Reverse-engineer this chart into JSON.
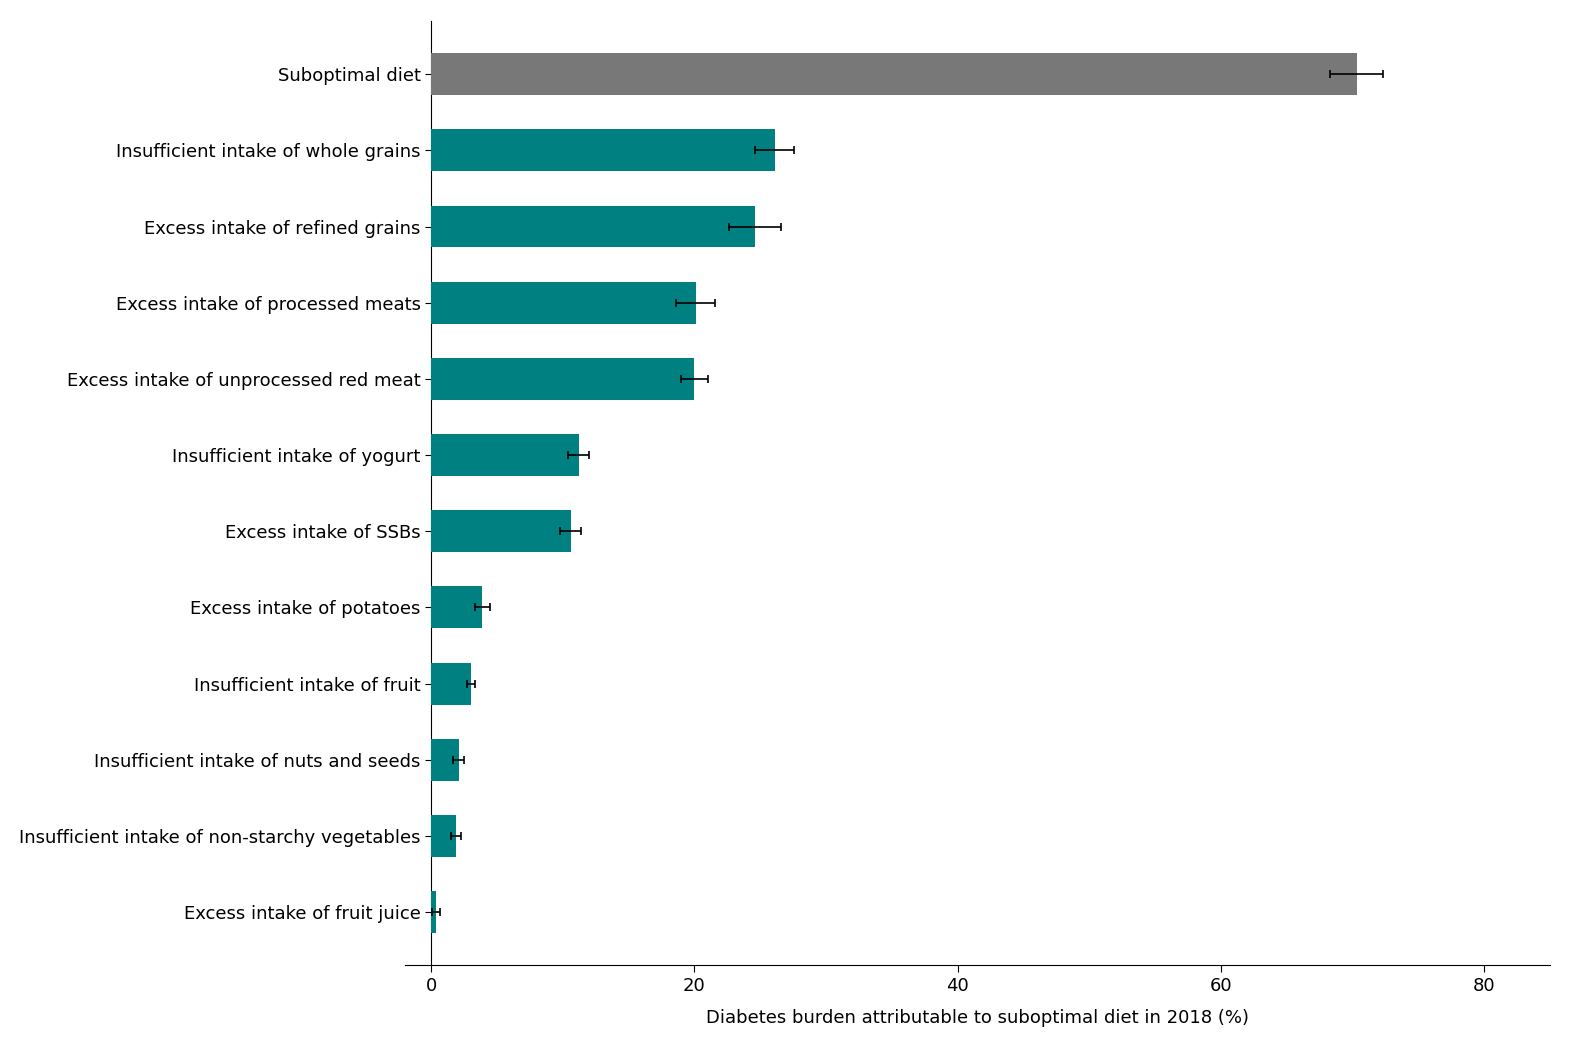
{
  "categories": [
    "Suboptimal diet",
    "Insufficient intake of whole grains",
    "Excess intake of refined grains",
    "Excess intake of processed meats",
    "Excess intake of unprocessed red meat",
    "Insufficient intake of yogurt",
    "Excess intake of SSBs",
    "Excess intake of potatoes",
    "Insufficient intake of fruit",
    "Insufficient intake of nuts and seeds",
    "Insufficient intake of non-starchy vegetables",
    "Excess intake of fruit juice"
  ],
  "values": [
    70.3,
    26.1,
    24.6,
    20.1,
    20.0,
    11.2,
    10.6,
    3.9,
    3.0,
    2.1,
    1.9,
    0.4
  ],
  "xerr_low": [
    2.0,
    1.5,
    2.0,
    1.5,
    1.0,
    0.8,
    0.8,
    0.6,
    0.3,
    0.4,
    0.4,
    0.3
  ],
  "xerr_high": [
    2.0,
    1.5,
    2.0,
    1.5,
    1.0,
    0.8,
    0.8,
    0.6,
    0.3,
    0.4,
    0.4,
    0.3
  ],
  "bar_colors": [
    "#787878",
    "#008080",
    "#008080",
    "#008080",
    "#008080",
    "#008080",
    "#008080",
    "#008080",
    "#008080",
    "#008080",
    "#008080",
    "#008080"
  ],
  "xlabel": "Diabetes burden attributable to suboptimal diet in 2018 (%)",
  "xlim": [
    -2,
    85
  ],
  "xticks": [
    0,
    20,
    40,
    60,
    80
  ],
  "background_color": "#ffffff",
  "bar_height": 0.55,
  "figsize": [
    15.71,
    10.48
  ],
  "dpi": 100,
  "label_fontsize": 13,
  "xlabel_fontsize": 13
}
